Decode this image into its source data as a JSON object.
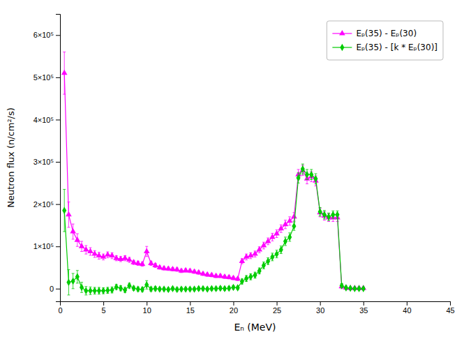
{
  "chart_data": {
    "type": "line",
    "xlabel": "Eₙ (MeV)",
    "ylabel": "Neutron flux (n/cm²/s)",
    "xlim": [
      0,
      45
    ],
    "ylim": [
      -30000.0,
      650000.0
    ],
    "xticks": [
      0,
      5,
      10,
      15,
      20,
      25,
      30,
      35,
      40,
      45
    ],
    "yticks": [
      0,
      {
        "value": 100000.0,
        "label": "1×10⁵"
      },
      {
        "value": 200000.0,
        "label": "2×10⁵"
      },
      {
        "value": 300000.0,
        "label": "3×10⁵"
      },
      {
        "value": 400000.0,
        "label": "4×10⁵"
      },
      {
        "value": 500000.0,
        "label": "5×10⁵"
      },
      {
        "value": 600000.0,
        "label": "6×10⁵"
      }
    ],
    "grid": false,
    "legend": "upper right",
    "x": [
      0.5,
      1.0,
      1.5,
      2.0,
      2.5,
      3.0,
      3.5,
      4.0,
      4.5,
      5.0,
      5.5,
      6.0,
      6.5,
      7.0,
      7.5,
      8.0,
      8.5,
      9.0,
      9.5,
      10.0,
      10.5,
      11.0,
      11.5,
      12.0,
      12.5,
      13.0,
      13.5,
      14.0,
      14.5,
      15.0,
      15.5,
      16.0,
      16.5,
      17.0,
      17.5,
      18.0,
      18.5,
      19.0,
      19.5,
      20.0,
      20.5,
      21.0,
      21.5,
      22.0,
      22.5,
      23.0,
      23.5,
      24.0,
      24.5,
      25.0,
      25.5,
      26.0,
      26.5,
      27.0,
      27.5,
      28.0,
      28.5,
      29.0,
      29.5,
      30.0,
      30.5,
      31.0,
      31.5,
      32.0,
      32.5,
      33.0,
      33.5,
      34.0,
      34.5,
      35.0
    ],
    "series": [
      {
        "name": "Eₚ(35) - Eₚ(30)",
        "color": "#ff00ff",
        "marker": "triangle",
        "line_style": "solid",
        "values": [
          510000.0,
          175000.0,
          135000.0,
          115000.0,
          100000.0,
          92000.0,
          88000.0,
          82000.0,
          78000.0,
          75000.0,
          80000.0,
          78000.0,
          72000.0,
          70000.0,
          72000.0,
          68000.0,
          62000.0,
          60000.0,
          58000.0,
          88000.0,
          60000.0,
          55000.0,
          50000.0,
          48000.0,
          47000.0,
          46000.0,
          45000.0,
          42000.0,
          43000.0,
          42000.0,
          40000.0,
          38000.0,
          35000.0,
          33000.0,
          32000.0,
          30000.0,
          30000.0,
          28000.0,
          27000.0,
          25000.0,
          23000.0,
          65000.0,
          75000.0,
          78000.0,
          82000.0,
          92000.0,
          102000.0,
          112000.0,
          122000.0,
          130000.0,
          142000.0,
          152000.0,
          160000.0,
          170000.0,
          270000.0,
          280000.0,
          260000.0,
          265000.0,
          255000.0,
          180000.0,
          172000.0,
          168000.0,
          168000.0,
          168000.0,
          5000.0,
          2000.0,
          1000.0,
          1000.0,
          1000.0,
          1000.0
        ],
        "errors": [
          50000.0,
          30000.0,
          18000.0,
          15000.0,
          12000.0,
          10000.0,
          9000.0,
          8000.0,
          8000.0,
          7000.0,
          7000.0,
          7000.0,
          6000.0,
          6000.0,
          6000.0,
          6000.0,
          5000.0,
          5000.0,
          5000.0,
          12000.0,
          5000.0,
          5000.0,
          4000.0,
          4000.0,
          4000.0,
          4000.0,
          4000.0,
          4000.0,
          4000.0,
          4000.0,
          4000.0,
          4000.0,
          4000.0,
          4000.0,
          4000.0,
          4000.0,
          4000.0,
          4000.0,
          4000.0,
          4000.0,
          4000.0,
          6000.0,
          7000.0,
          7000.0,
          7000.0,
          7000.0,
          8000.0,
          8000.0,
          9000.0,
          9000.0,
          9000.0,
          10000.0,
          10000.0,
          10000.0,
          12000.0,
          12000.0,
          12000.0,
          12000.0,
          12000.0,
          10000.0,
          10000.0,
          9000.0,
          9000.0,
          9000.0,
          5000.0,
          4000.0,
          3000.0,
          3000.0,
          3000.0,
          3000.0
        ]
      },
      {
        "name": "Eₚ(35) - [k * Eₚ(30)]",
        "color": "#00cc00",
        "marker": "diamond",
        "line_style": "solid",
        "values": [
          185000.0,
          15000.0,
          18000.0,
          28000.0,
          3000.0,
          -5000.0,
          -5000.0,
          -5000.0,
          -5000.0,
          -5000.0,
          -4000.0,
          -3000.0,
          4000.0,
          1000.0,
          -3000.0,
          7000.0,
          1000.0,
          -1000.0,
          -2000.0,
          9000.0,
          -1000.0,
          0.0,
          -1000.0,
          -1000.0,
          -2000.0,
          0.0,
          -2000.0,
          -1000.0,
          -1000.0,
          -1000.0,
          -1000.0,
          0.0,
          0.0,
          -1000.0,
          0.0,
          0.0,
          1000.0,
          0.0,
          1000.0,
          3000.0,
          2000.0,
          17000.0,
          24000.0,
          28000.0,
          32000.0,
          42000.0,
          55000.0,
          65000.0,
          75000.0,
          82000.0,
          92000.0,
          112000.0,
          122000.0,
          148000.0,
          262000.0,
          283000.0,
          270000.0,
          270000.0,
          260000.0,
          182000.0,
          175000.0,
          170000.0,
          175000.0,
          175000.0,
          7000.0,
          2000.0,
          1000.0,
          0.0,
          0.0,
          0.0
        ],
        "errors": [
          50000.0,
          30000.0,
          18000.0,
          15000.0,
          12000.0,
          10000.0,
          9000.0,
          8000.0,
          8000.0,
          7000.0,
          7000.0,
          7000.0,
          6000.0,
          6000.0,
          6000.0,
          6000.0,
          5000.0,
          5000.0,
          5000.0,
          10000.0,
          5000.0,
          5000.0,
          4000.0,
          4000.0,
          4000.0,
          4000.0,
          4000.0,
          4000.0,
          4000.0,
          4000.0,
          4000.0,
          4000.0,
          4000.0,
          4000.0,
          4000.0,
          4000.0,
          4000.0,
          4000.0,
          4000.0,
          4000.0,
          4000.0,
          6000.0,
          7000.0,
          7000.0,
          7000.0,
          7000.0,
          8000.0,
          8000.0,
          9000.0,
          9000.0,
          9000.0,
          10000.0,
          10000.0,
          10000.0,
          12000.0,
          12000.0,
          12000.0,
          12000.0,
          12000.0,
          10000.0,
          10000.0,
          9000.0,
          9000.0,
          9000.0,
          5000.0,
          4000.0,
          3000.0,
          3000.0,
          3000.0,
          3000.0
        ]
      }
    ]
  }
}
